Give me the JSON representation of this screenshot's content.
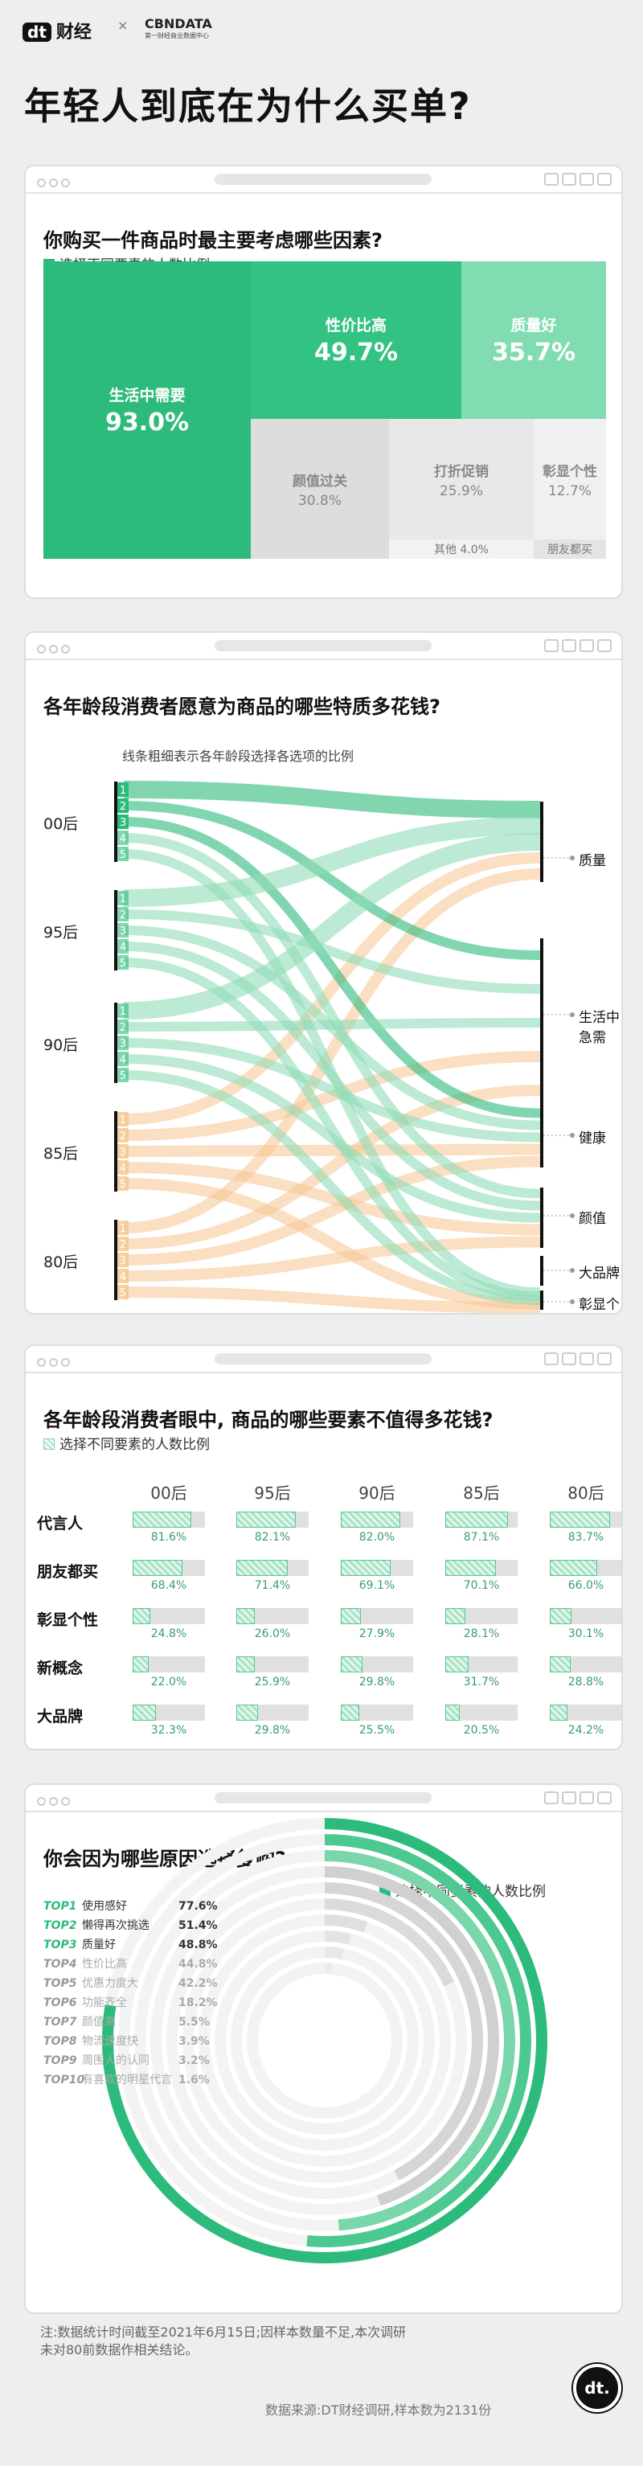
{
  "brand": {
    "name": "财经",
    "logo": "dt",
    "partner": "CBNDATA",
    "partner_sub": "第一财经商业数据中心"
  },
  "page_title": "年轻人到底在为什么买单?",
  "section1": {
    "title": "你购买一件商品时最主要考虑哪些因素?",
    "legend": "选择不同要素的人数比例"
  },
  "section2": {
    "title": "各年龄段消费者愿意为商品的哪些特质多花钱?",
    "subtitle": "线条粗细表示各年龄段选择各选项的比例",
    "ages": [
      "00后",
      "95后",
      "90后",
      "85后",
      "80后"
    ],
    "ranks": [
      "1",
      "2",
      "3",
      "4",
      "5"
    ],
    "targets": [
      "质量",
      "生活中急需",
      "健康",
      "颜值",
      "大品牌",
      "彰显个性"
    ]
  },
  "section3": {
    "title": "各年龄段消费者眼中, 商品的哪些要素不值得多花钱?",
    "legend": "选择不同要素的人数比例"
  },
  "section4": {
    "title": "你会因为哪些原因选择复购?",
    "legend": "选择不同要素的人数比例"
  },
  "footer": {
    "note_line1": "注:数据统计时间截至2021年6月15日;因样本数量不足,本次调研",
    "note_line2": "未对80前数据作相关结论。",
    "source": "数据来源:DT财经调研,样本数为2131份",
    "logo": "dt."
  },
  "colors": {
    "green": "#2dbb7b",
    "green_light": "#82dcb2",
    "green_pale": "#bfeeda",
    "orange": "#f6c48f",
    "gray": "#d9d9d9"
  },
  "chart_data": [
    {
      "type": "treemap",
      "items": [
        {
          "label": "生活中需要",
          "value": 93.0,
          "display": "93.0%"
        },
        {
          "label": "性价比高",
          "value": 49.7,
          "display": "49.7%"
        },
        {
          "label": "质量好",
          "value": 35.7,
          "display": "35.7%"
        },
        {
          "label": "颜值过关",
          "value": 30.8,
          "display": "30.8%"
        },
        {
          "label": "打折促销",
          "value": 25.9,
          "display": "25.9%"
        },
        {
          "label": "彰显个性",
          "value": 12.7,
          "display": "12.7%"
        },
        {
          "label": "其他",
          "value": 4.0,
          "display": "4.0%"
        },
        {
          "label": "朋友都买",
          "value": null,
          "display": ""
        }
      ]
    },
    {
      "type": "sankey",
      "sources": [
        "00后",
        "95后",
        "90后",
        "85后",
        "80后"
      ],
      "targets": [
        "质量",
        "生活中急需",
        "健康",
        "颜值",
        "大品牌",
        "彰显个性"
      ]
    },
    {
      "type": "bar",
      "categories": [
        "00后",
        "95后",
        "90后",
        "85后",
        "80后"
      ],
      "series": [
        {
          "name": "代言人",
          "values": [
            81.6,
            82.1,
            82.0,
            87.1,
            83.7
          ]
        },
        {
          "name": "朋友都买",
          "values": [
            68.4,
            71.4,
            69.1,
            70.1,
            66.0
          ]
        },
        {
          "name": "彰显个性",
          "values": [
            24.8,
            26.0,
            27.9,
            28.1,
            30.1
          ]
        },
        {
          "name": "新概念",
          "values": [
            22.0,
            25.9,
            29.8,
            31.7,
            28.8
          ]
        },
        {
          "name": "大品牌",
          "values": [
            32.3,
            29.8,
            25.5,
            20.5,
            24.2
          ]
        }
      ],
      "ylim": [
        0,
        100
      ]
    },
    {
      "type": "radial_bar",
      "items": [
        {
          "rank": "TOP1",
          "label": "使用感好",
          "value": 77.6
        },
        {
          "rank": "TOP2",
          "label": "懒得再次挑选",
          "value": 51.4
        },
        {
          "rank": "TOP3",
          "label": "质量好",
          "value": 48.8
        },
        {
          "rank": "TOP4",
          "label": "性价比高",
          "value": 44.8
        },
        {
          "rank": "TOP5",
          "label": "优惠力度大",
          "value": 42.2
        },
        {
          "rank": "TOP6",
          "label": "功能齐全",
          "value": 18.2
        },
        {
          "rank": "TOP7",
          "label": "颜值高",
          "value": 5.5
        },
        {
          "rank": "TOP8",
          "label": "物流速度快",
          "value": 3.9
        },
        {
          "rank": "TOP9",
          "label": "周围人的认同",
          "value": 3.2
        },
        {
          "rank": "TOP10",
          "label": "有喜欢的明星代言",
          "value": 1.6
        }
      ]
    }
  ]
}
